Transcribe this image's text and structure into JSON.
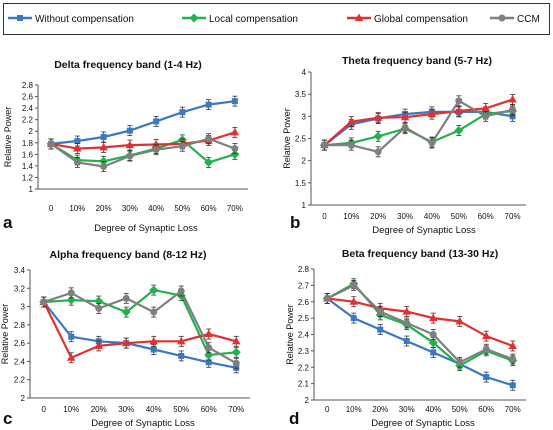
{
  "legend": {
    "items": [
      {
        "label": "Without compensation",
        "color": "#3a78c2",
        "marker": "square"
      },
      {
        "label": "Local compensation",
        "color": "#22b14c",
        "marker": "diamond"
      },
      {
        "label": "Global compensation",
        "color": "#e03030",
        "marker": "triangle"
      },
      {
        "label": "CCM",
        "color": "#7f7f7f",
        "marker": "circle"
      }
    ]
  },
  "chart_data": [
    {
      "type": "line",
      "panel_letter": "a",
      "title": "Delta frequency band (1-4 Hz)",
      "xlabel": "Degree of Synaptic Loss",
      "ylabel": "Relative Power",
      "categories": [
        "0",
        "10%",
        "20%",
        "30%",
        "40%",
        "50%",
        "60%",
        "70%"
      ],
      "ylim": [
        1,
        2.8
      ],
      "yticks": [
        "1",
        "1.2",
        "1.4",
        "1.6",
        "1.8",
        "2",
        "2.2",
        "2.4",
        "2.6",
        "2.8"
      ],
      "grid": false,
      "series": [
        {
          "name": "Without compensation",
          "values": [
            1.78,
            1.83,
            1.9,
            2.01,
            2.17,
            2.33,
            2.46,
            2.52
          ]
        },
        {
          "name": "Local compensation",
          "values": [
            1.78,
            1.5,
            1.48,
            1.58,
            1.7,
            1.85,
            1.46,
            1.6
          ]
        },
        {
          "name": "Global compensation",
          "values": [
            1.78,
            1.7,
            1.72,
            1.76,
            1.77,
            1.78,
            1.84,
            1.98
          ]
        },
        {
          "name": "CCM",
          "values": [
            1.78,
            1.46,
            1.39,
            1.57,
            1.68,
            1.74,
            1.87,
            1.7
          ]
        }
      ]
    },
    {
      "type": "line",
      "panel_letter": "b",
      "title": "Theta frequency band (5-7 Hz)",
      "xlabel": "Degree of Synaptic Loss",
      "ylabel": "Relative Power",
      "categories": [
        "0",
        "10%",
        "20%",
        "30%",
        "40%",
        "50%",
        "60%",
        "70%"
      ],
      "ylim": [
        1,
        4
      ],
      "yticks": [
        "1",
        "1.5",
        "2",
        "2.5",
        "3",
        "3.5",
        "4"
      ],
      "grid": false,
      "series": [
        {
          "name": "Without compensation",
          "values": [
            2.35,
            2.82,
            2.95,
            3.05,
            3.1,
            3.1,
            3.1,
            3.0
          ]
        },
        {
          "name": "Local compensation",
          "values": [
            2.35,
            2.4,
            2.55,
            2.72,
            2.42,
            2.68,
            3.05,
            3.12
          ]
        },
        {
          "name": "Global compensation",
          "values": [
            2.35,
            2.88,
            2.97,
            2.98,
            3.05,
            3.12,
            3.18,
            3.38
          ]
        },
        {
          "name": "CCM",
          "values": [
            2.35,
            2.35,
            2.2,
            2.75,
            2.4,
            3.35,
            3.0,
            3.15
          ]
        }
      ]
    },
    {
      "type": "line",
      "panel_letter": "c",
      "title": "Alpha frequency band (8-12 Hz)",
      "xlabel": "Degree of Synaptic Loss",
      "ylabel": "Relative Power",
      "categories": [
        "0",
        "10%",
        "20%",
        "30%",
        "40%",
        "50%",
        "60%",
        "70%"
      ],
      "ylim": [
        2,
        3.4
      ],
      "yticks": [
        "2",
        "2.2",
        "2.4",
        "2.6",
        "2.8",
        "3",
        "3.2",
        "3.4"
      ],
      "grid": false,
      "series": [
        {
          "name": "Without compensation",
          "values": [
            3.05,
            2.67,
            2.62,
            2.6,
            2.53,
            2.46,
            2.39,
            2.33
          ]
        },
        {
          "name": "Local compensation",
          "values": [
            3.05,
            3.07,
            3.06,
            2.94,
            3.18,
            3.12,
            2.47,
            2.5
          ]
        },
        {
          "name": "Global compensation",
          "values": [
            3.05,
            2.44,
            2.57,
            2.6,
            2.62,
            2.62,
            2.7,
            2.62
          ]
        },
        {
          "name": "CCM",
          "values": [
            3.05,
            3.15,
            2.98,
            3.09,
            2.94,
            3.17,
            2.55,
            2.38
          ]
        }
      ]
    },
    {
      "type": "line",
      "panel_letter": "d",
      "title": "Beta frequency band (13-30 Hz)",
      "xlabel": "Degree of Synaptic Loss",
      "ylabel": "Relative Power",
      "categories": [
        "0",
        "10%",
        "20%",
        "30%",
        "40%",
        "50%",
        "60%",
        "70%"
      ],
      "ylim": [
        2,
        2.8
      ],
      "yticks": [
        "2",
        "2.1",
        "2.2",
        "2.3",
        "2.4",
        "2.5",
        "2.6",
        "2.7",
        "2.8"
      ],
      "grid": false,
      "series": [
        {
          "name": "Without compensation",
          "values": [
            2.62,
            2.5,
            2.43,
            2.36,
            2.29,
            2.22,
            2.14,
            2.09
          ]
        },
        {
          "name": "Local compensation",
          "values": [
            2.62,
            2.71,
            2.52,
            2.46,
            2.35,
            2.21,
            2.3,
            2.24
          ]
        },
        {
          "name": "Global compensation",
          "values": [
            2.62,
            2.6,
            2.56,
            2.54,
            2.5,
            2.48,
            2.39,
            2.33
          ]
        },
        {
          "name": "CCM",
          "values": [
            2.62,
            2.7,
            2.54,
            2.47,
            2.4,
            2.23,
            2.31,
            2.25
          ]
        }
      ]
    }
  ]
}
